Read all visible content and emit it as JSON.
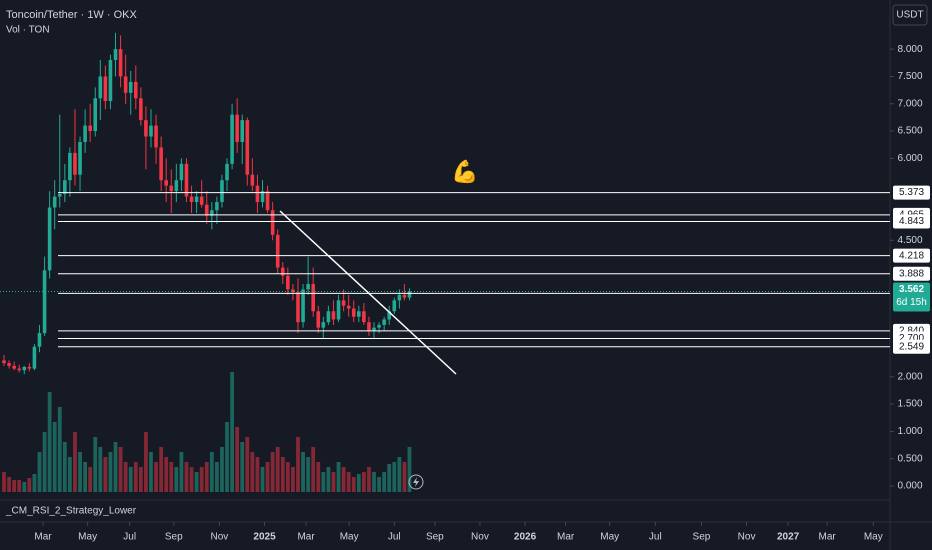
{
  "header": {
    "symbol": "Toncoin/Tether · 1W · OKX",
    "volume_label": "Vol · TON",
    "currency": "USDT",
    "indicator": "_CM_RSI_2_Strategy_Lower",
    "countdown": "6d 15h",
    "annotation": "💪"
  },
  "chart_data": {
    "type": "candlestick",
    "up_color": "#22ab94",
    "down_color": "#f23645",
    "level_color": "#ffffff",
    "xlim": [
      -0.79,
      174.8
    ],
    "ylim": [
      0,
      8.9
    ],
    "xticks": [
      {
        "value": 7.7,
        "label": "Mar"
      },
      {
        "value": 16.5,
        "label": "May"
      },
      {
        "value": 24.8,
        "label": "Jul"
      },
      {
        "value": 33.5,
        "label": "Sep"
      },
      {
        "value": 42.5,
        "label": "Nov"
      },
      {
        "value": 51.4,
        "label": "2025"
      },
      {
        "value": 59.6,
        "label": "Mar"
      },
      {
        "value": 68.1,
        "label": "May"
      },
      {
        "value": 77,
        "label": "Jul"
      },
      {
        "value": 85,
        "label": "Sep"
      },
      {
        "value": 93.9,
        "label": "Nov"
      },
      {
        "value": 102.8,
        "label": "2026"
      },
      {
        "value": 110.8,
        "label": "Mar"
      },
      {
        "value": 119.5,
        "label": "May"
      },
      {
        "value": 128.5,
        "label": "Jul"
      },
      {
        "value": 137.6,
        "label": "Sep"
      },
      {
        "value": 146.5,
        "label": "Nov"
      },
      {
        "value": 154.7,
        "label": "2027"
      },
      {
        "value": 162.4,
        "label": "Mar"
      },
      {
        "value": 171.5,
        "label": "May"
      }
    ],
    "yticks": [
      {
        "value": 0,
        "label": "0.000"
      },
      {
        "value": 0.5,
        "label": "0.500"
      },
      {
        "value": 1,
        "label": "1.000"
      },
      {
        "value": 1.5,
        "label": "1.500"
      },
      {
        "value": 2,
        "label": "2.000"
      },
      {
        "value": 4.5,
        "label": "4.500"
      },
      {
        "value": 6,
        "label": "6.000"
      },
      {
        "value": 6.5,
        "label": "6.500"
      },
      {
        "value": 7,
        "label": "7.000"
      },
      {
        "value": 7.5,
        "label": "7.500"
      },
      {
        "value": 8,
        "label": "8.000"
      }
    ],
    "levels": [
      5.373,
      4.965,
      4.843,
      4.218,
      3.888,
      3.528,
      {
        "value": 2.84,
        "label": "2.840"
      },
      {
        "value": 2.7,
        "label": "2.700"
      },
      2.549
    ],
    "candles": [
      [
        2.3,
        2.4,
        2.2,
        2.25
      ],
      [
        2.25,
        2.3,
        2.15,
        2.2
      ],
      [
        2.2,
        2.28,
        2.12,
        2.15
      ],
      [
        2.15,
        2.22,
        2.08,
        2.12
      ],
      [
        2.12,
        2.2,
        2.05,
        2.18
      ],
      [
        2.18,
        2.25,
        2.1,
        2.15
      ],
      [
        2.15,
        2.6,
        2.12,
        2.55
      ],
      [
        2.55,
        2.95,
        2.45,
        2.8
      ],
      [
        2.8,
        4.2,
        2.75,
        3.95
      ],
      [
        3.95,
        5.4,
        3.8,
        5.1
      ],
      [
        5.1,
        5.6,
        4.7,
        5.3
      ],
      [
        5.3,
        6.8,
        5.1,
        5.35
      ],
      [
        5.35,
        5.9,
        5.2,
        5.6
      ],
      [
        5.6,
        6.2,
        5.3,
        6.1
      ],
      [
        6.1,
        6.9,
        5.5,
        5.7
      ],
      [
        5.7,
        6.4,
        5.4,
        6.3
      ],
      [
        6.3,
        6.9,
        6.1,
        6.6
      ],
      [
        6.6,
        7,
        6.3,
        6.5
      ],
      [
        6.5,
        7.3,
        6.4,
        7.1
      ],
      [
        7.1,
        7.8,
        6.7,
        7.5
      ],
      [
        7.5,
        7.7,
        6.9,
        7.05
      ],
      [
        7.05,
        7.9,
        6.9,
        7.8
      ],
      [
        7.8,
        8.3,
        7.5,
        8
      ],
      [
        8,
        8.25,
        7.3,
        7.5
      ],
      [
        7.5,
        7.9,
        7,
        7.2
      ],
      [
        7.2,
        7.6,
        6.8,
        7.4
      ],
      [
        7.4,
        7.7,
        6.9,
        7.1
      ],
      [
        7.1,
        7.3,
        6.6,
        6.7
      ],
      [
        6.7,
        6.95,
        5.8,
        6.4
      ],
      [
        6.4,
        6.9,
        6.2,
        6.6
      ],
      [
        6.6,
        6.8,
        5.9,
        6.2
      ],
      [
        6.2,
        6.4,
        5.4,
        5.6
      ],
      [
        5.6,
        6,
        5.2,
        5.5
      ],
      [
        5.5,
        5.8,
        5,
        5.4
      ],
      [
        5.4,
        5.9,
        5.2,
        5.6
      ],
      [
        5.6,
        6,
        5.4,
        5.9
      ],
      [
        5.9,
        6,
        5.2,
        5.3
      ],
      [
        5.3,
        5.5,
        5,
        5.2
      ],
      [
        5.2,
        5.4,
        5,
        5.3
      ],
      [
        5.3,
        5.6,
        5.1,
        5.15
      ],
      [
        5.15,
        5.4,
        4.8,
        4.95
      ],
      [
        4.95,
        5.2,
        4.7,
        5.05
      ],
      [
        5.05,
        5.3,
        4.8,
        5.2
      ],
      [
        5.2,
        5.7,
        5.1,
        5.6
      ],
      [
        5.6,
        6,
        5.4,
        5.9
      ],
      [
        5.9,
        7,
        5.8,
        6.8
      ],
      [
        6.8,
        7.1,
        6.1,
        6.3
      ],
      [
        6.3,
        6.8,
        5.9,
        6.7
      ],
      [
        6.7,
        6.75,
        5.5,
        5.7
      ],
      [
        5.7,
        6,
        5.4,
        5.5
      ],
      [
        5.5,
        5.7,
        5,
        5.2
      ],
      [
        5.2,
        5.6,
        5.1,
        5.4
      ],
      [
        5.4,
        5.5,
        5,
        5.05
      ],
      [
        5.05,
        5.2,
        4.5,
        4.6
      ],
      [
        4.6,
        4.7,
        3.9,
        4
      ],
      [
        4,
        4.1,
        3.7,
        3.85
      ],
      [
        3.85,
        4,
        3.5,
        3.6
      ],
      [
        3.6,
        3.7,
        3.4,
        3.55
      ],
      [
        3.55,
        3.8,
        2.8,
        3
      ],
      [
        3,
        3.7,
        2.9,
        3.6
      ],
      [
        3.6,
        4.2,
        3.5,
        3.7
      ],
      [
        3.7,
        4,
        3.1,
        3.2
      ],
      [
        3.2,
        3.3,
        2.8,
        2.9
      ],
      [
        2.9,
        3.1,
        2.7,
        3
      ],
      [
        3,
        3.3,
        2.95,
        3.2
      ],
      [
        3.2,
        3.4,
        2.95,
        3.05
      ],
      [
        3.05,
        3.5,
        3,
        3.4
      ],
      [
        3.4,
        3.6,
        3.2,
        3.3
      ],
      [
        3.3,
        3.5,
        3.1,
        3.25
      ],
      [
        3.25,
        3.4,
        3,
        3.1
      ],
      [
        3.1,
        3.3,
        3,
        3.2
      ],
      [
        3.2,
        3.35,
        2.95,
        3
      ],
      [
        3,
        3.1,
        2.75,
        2.85
      ],
      [
        2.85,
        3,
        2.7,
        2.9
      ],
      [
        2.9,
        3,
        2.8,
        2.95
      ],
      [
        2.95,
        3.1,
        2.85,
        3.05
      ],
      [
        3.05,
        3.3,
        2.95,
        3.2
      ],
      [
        3.2,
        3.45,
        3.15,
        3.4
      ],
      [
        3.4,
        3.6,
        3.25,
        3.5
      ],
      [
        3.5,
        3.7,
        3.4,
        3.45
      ],
      [
        3.45,
        3.62,
        3.4,
        3.562
      ]
    ],
    "volume": [
      20,
      15,
      12,
      12,
      10,
      14,
      18,
      40,
      60,
      100,
      70,
      85,
      50,
      35,
      60,
      40,
      30,
      25,
      55,
      45,
      35,
      40,
      50,
      45,
      30,
      25,
      30,
      25,
      60,
      40,
      30,
      45,
      35,
      30,
      25,
      40,
      30,
      25,
      20,
      25,
      30,
      40,
      30,
      45,
      70,
      120,
      65,
      50,
      55,
      40,
      35,
      25,
      30,
      40,
      45,
      35,
      30,
      25,
      55,
      40,
      35,
      45,
      30,
      20,
      25,
      20,
      30,
      25,
      20,
      15,
      18,
      20,
      25,
      20,
      15,
      20,
      28,
      30,
      35,
      30,
      45
    ]
  }
}
